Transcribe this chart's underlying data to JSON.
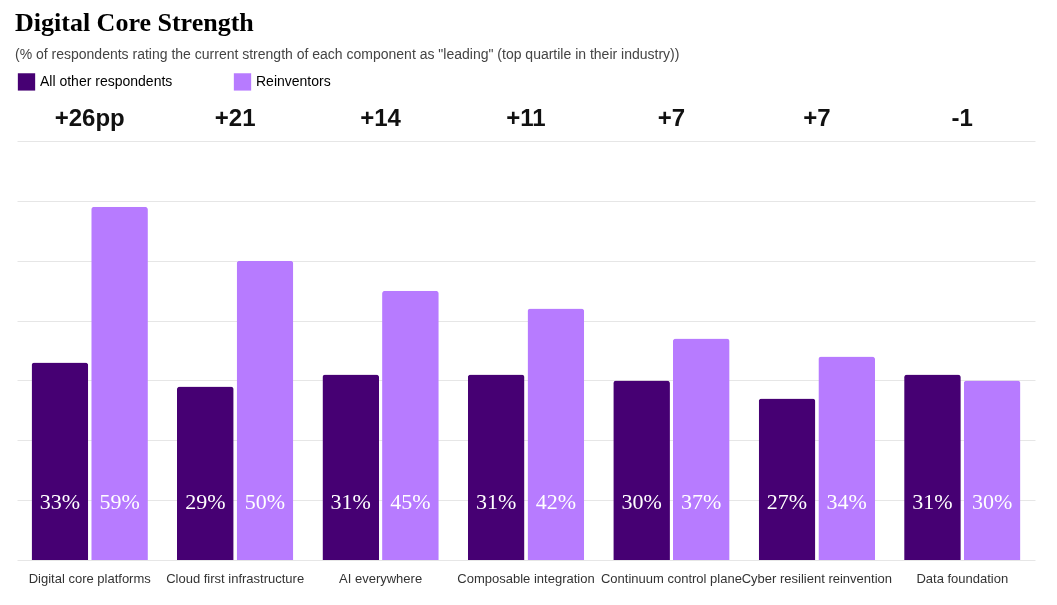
{
  "chart_data": {
    "type": "bar",
    "title": "Digital Core Strength",
    "subtitle": "(% of respondents rating the current strength of each component as \"leading\" (top quartile in their industry))",
    "categories": [
      "Digital core platforms",
      "Cloud first infrastructure",
      "AI everywhere",
      "Composable integration",
      "Continuum control plane",
      "Cyber resilient reinvention",
      "Data foundation"
    ],
    "series": [
      {
        "name": "All other respondents",
        "color": "#460073",
        "values": [
          33,
          29,
          31,
          31,
          30,
          27,
          31
        ],
        "value_labels": [
          "33%",
          "29%",
          "31%",
          "31%",
          "30%",
          "27%",
          "31%"
        ]
      },
      {
        "name": "Reinventors",
        "color": "#b77bff",
        "values": [
          59,
          50,
          45,
          42,
          37,
          34,
          30
        ],
        "value_labels": [
          "59%",
          "50%",
          "45%",
          "42%",
          "37%",
          "34%",
          "30%"
        ]
      }
    ],
    "annotations": [
      "+26pp",
      "+21",
      "+14",
      "+11",
      "+7",
      "+7",
      "-1"
    ],
    "ylim": [
      0,
      70
    ],
    "yticks": [
      {
        "value": 0,
        "label": null
      },
      {
        "value": 10,
        "label": null
      },
      {
        "value": 20,
        "label": null
      },
      {
        "value": 30,
        "label": null
      },
      {
        "value": 40,
        "label": null
      },
      {
        "value": 50,
        "label": null
      },
      {
        "value": 60,
        "label": null
      },
      {
        "value": 70,
        "label": null
      }
    ],
    "grid": "y",
    "legend": "top left"
  }
}
